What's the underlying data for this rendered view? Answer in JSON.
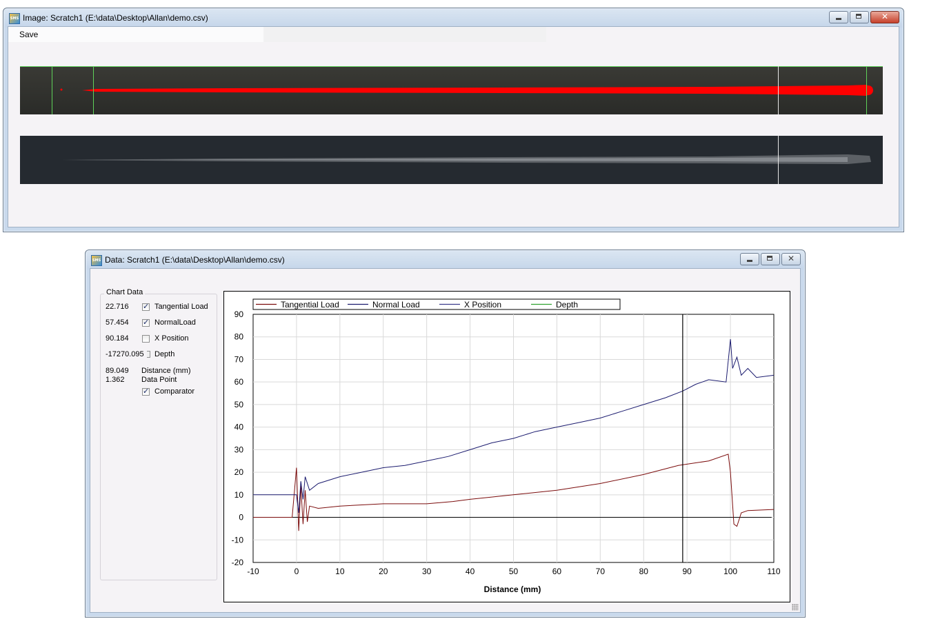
{
  "image_window": {
    "title": "Image: Scratch1 (E:\\data\\Desktop\\Allan\\demo.csv)",
    "menu": {
      "save_label": "Save"
    },
    "icon": "sms-app-icon",
    "trace_color": "#ff0000",
    "marker_color": "#5fd35a"
  },
  "data_window": {
    "title": "Data: Scratch1 (E:\\data\\Desktop\\Allan\\demo.csv)",
    "icon": "sms-app-icon",
    "panel": {
      "group_title": "Chart Data",
      "rows": [
        {
          "value": "22.716",
          "label": "Tangential Load",
          "checked": true
        },
        {
          "value": "57.454",
          "label": "NormalLoad",
          "checked": true
        },
        {
          "value": "90.184",
          "label": "X Position",
          "checked": false
        },
        {
          "value": "-17270.095",
          "label": "Depth",
          "checked": false
        }
      ],
      "distance_value": "89.049",
      "distance_label": "Distance (mm)",
      "datapoint_value": "1.362",
      "datapoint_label": "Data Point",
      "comparator_label": "Comparator",
      "comparator_checked": true
    }
  },
  "chart_data": {
    "type": "line",
    "xlabel": "Distance (mm)",
    "ylabel": "",
    "xlim": [
      -10,
      110
    ],
    "ylim": [
      -20,
      90
    ],
    "xticks": [
      -10,
      0,
      10,
      20,
      30,
      40,
      50,
      60,
      70,
      80,
      90,
      100,
      110
    ],
    "yticks": [
      90,
      80,
      70,
      60,
      50,
      40,
      30,
      20,
      10,
      0,
      -10,
      -20
    ],
    "grid": true,
    "legend_position": "top",
    "cursor_x": 89,
    "series": [
      {
        "name": "Tangential Load",
        "color": "#7a0a0a",
        "x": [
          -10,
          -1,
          0,
          0.5,
          1,
          1.5,
          2,
          2.5,
          3,
          5,
          10,
          20,
          30,
          36,
          40,
          45,
          50,
          60,
          70,
          80,
          88,
          95,
          99.5,
          100,
          100.8,
          101.5,
          102.5,
          104,
          110
        ],
        "values": [
          0,
          0,
          22,
          -6,
          14,
          -3,
          12,
          -2,
          5,
          4,
          5,
          6,
          6,
          7,
          8,
          9,
          10,
          12,
          15,
          19,
          23,
          25,
          28,
          20,
          -3,
          -4,
          2,
          3,
          3.5
        ]
      },
      {
        "name": "Normal Load",
        "color": "#1a1a6e",
        "x": [
          -10,
          -1,
          0,
          0.5,
          1,
          1.5,
          2,
          3,
          5,
          10,
          15,
          20,
          25,
          30,
          35,
          40,
          45,
          50,
          55,
          60,
          65,
          70,
          75,
          80,
          85,
          89,
          92,
          95,
          99,
          100,
          100.5,
          101.5,
          102.5,
          104,
          106,
          110
        ],
        "values": [
          10,
          10,
          10,
          2,
          16,
          8,
          18,
          12,
          15,
          18,
          20,
          22,
          23,
          25,
          27,
          30,
          33,
          35,
          38,
          40,
          42,
          44,
          47,
          50,
          53,
          56,
          59,
          61,
          60,
          79,
          66,
          71,
          63,
          66,
          62,
          63
        ]
      },
      {
        "name": "X Position",
        "color": "#3c3c8c",
        "x": [],
        "values": []
      },
      {
        "name": "Depth",
        "color": "#2ea12e",
        "x": [],
        "values": []
      }
    ]
  }
}
